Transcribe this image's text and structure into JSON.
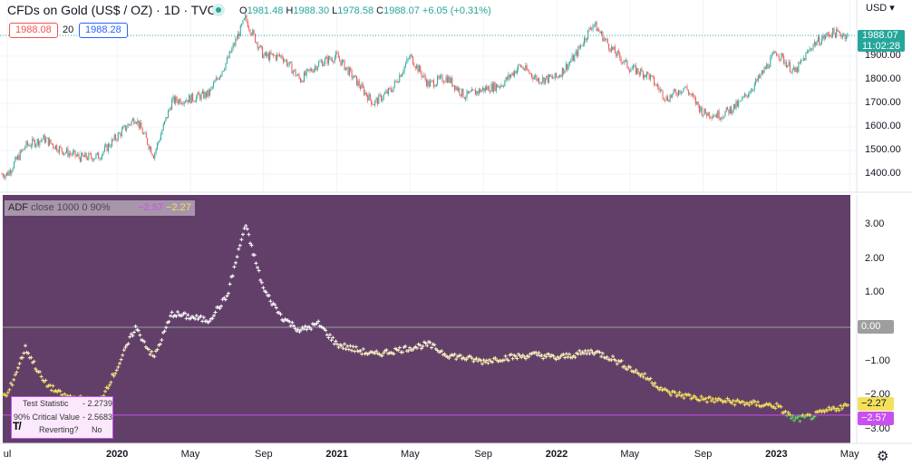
{
  "header": {
    "title": "CFDs on Gold (US$ / OZ) · 1D · TVC",
    "market_status_icon": "market-open-dot-icon",
    "ohlc": {
      "o_label": "O",
      "o": "1981.48",
      "h_label": "H",
      "h": "1988.30",
      "l_label": "L",
      "l": "1978.58",
      "c_label": "C",
      "c": "1988.07",
      "change": "+6.05 (+0.31%)"
    },
    "sell_price": "1988.08",
    "spread": "20",
    "buy_price": "1988.28"
  },
  "price_axis": {
    "currency": "USD ▾",
    "ticks": [
      "1900.00",
      "1800.00",
      "1700.00",
      "1600.00",
      "1500.00",
      "1400.00"
    ],
    "last_price": "1988.07",
    "countdown": "11:02:28"
  },
  "adf_legend": {
    "name": "ADF",
    "params": "close 1000 0 90%",
    "zero": "0.00",
    "critical": "−2.57",
    "statistic": "−2.27"
  },
  "adf_axis": {
    "ticks": [
      "3.00",
      "2.00",
      "1.00",
      "−1.00",
      "−2.00",
      "−3.00"
    ],
    "zero_label": "0.00",
    "stat_label": "−2.27",
    "crit_label": "−2.57"
  },
  "adf_table": {
    "rows": [
      {
        "label": "Test Statistic",
        "value": "- 2.2739"
      },
      {
        "label": "90% Critical Value",
        "value": "- 2.5683"
      },
      {
        "label": "Reverting?",
        "value": "No"
      }
    ],
    "logo": "TV"
  },
  "time_axis": {
    "ticks": [
      {
        "label": "ul",
        "m": 0.0,
        "bold": false
      },
      {
        "label": "2020",
        "m": 6,
        "bold": true
      },
      {
        "label": "May",
        "m": 10,
        "bold": false
      },
      {
        "label": "Sep",
        "m": 14,
        "bold": false
      },
      {
        "label": "2021",
        "m": 18,
        "bold": true
      },
      {
        "label": "May",
        "m": 22,
        "bold": false
      },
      {
        "label": "Sep",
        "m": 26,
        "bold": false
      },
      {
        "label": "2022",
        "m": 30,
        "bold": true
      },
      {
        "label": "May",
        "m": 34,
        "bold": false
      },
      {
        "label": "Sep",
        "m": 38,
        "bold": false
      },
      {
        "label": "2023",
        "m": 42,
        "bold": true
      },
      {
        "label": "May",
        "m": 46,
        "bold": false
      }
    ]
  },
  "colors": {
    "up": "#26a69a",
    "down": "#ef5350",
    "adf_bg": "#613f69",
    "critical": "#c850f0",
    "statistic": "#f5e05a",
    "zero_line": "#9e9e9e",
    "reverting": "#5cd65c"
  },
  "chart_data": [
    {
      "type": "candlestick",
      "title": "CFDs on Gold (US$ / OZ)",
      "interval": "1D",
      "ylim": [
        1340,
        2100
      ],
      "price_path": [
        [
          "2019-07",
          1400
        ],
        [
          "2019-08",
          1520
        ],
        [
          "2019-09",
          1550
        ],
        [
          "2019-10",
          1500
        ],
        [
          "2019-11",
          1470
        ],
        [
          "2019-12",
          1475
        ],
        [
          "2020-01",
          1560
        ],
        [
          "2020-02",
          1640
        ],
        [
          "2020-03",
          1480
        ],
        [
          "2020-04",
          1710
        ],
        [
          "2020-05",
          1720
        ],
        [
          "2020-06",
          1740
        ],
        [
          "2020-07",
          1880
        ],
        [
          "2020-08",
          2060
        ],
        [
          "2020-09",
          1900
        ],
        [
          "2020-10",
          1900
        ],
        [
          "2020-11",
          1800
        ],
        [
          "2020-12",
          1870
        ],
        [
          "2021-01",
          1900
        ],
        [
          "2021-02",
          1800
        ],
        [
          "2021-03",
          1700
        ],
        [
          "2021-04",
          1760
        ],
        [
          "2021-05",
          1900
        ],
        [
          "2021-06",
          1780
        ],
        [
          "2021-07",
          1810
        ],
        [
          "2021-08",
          1730
        ],
        [
          "2021-09",
          1760
        ],
        [
          "2021-10",
          1780
        ],
        [
          "2021-11",
          1860
        ],
        [
          "2021-12",
          1800
        ],
        [
          "2022-01",
          1810
        ],
        [
          "2022-02",
          1900
        ],
        [
          "2022-03",
          2040
        ],
        [
          "2022-04",
          1930
        ],
        [
          "2022-05",
          1850
        ],
        [
          "2022-06",
          1820
        ],
        [
          "2022-07",
          1720
        ],
        [
          "2022-08",
          1770
        ],
        [
          "2022-09",
          1660
        ],
        [
          "2022-10",
          1650
        ],
        [
          "2022-11",
          1700
        ],
        [
          "2022-12",
          1800
        ],
        [
          "2023-01",
          1920
        ],
        [
          "2023-02",
          1830
        ],
        [
          "2023-03",
          1950
        ],
        [
          "2023-04",
          2000
        ],
        [
          "2023-05",
          1988.07
        ]
      ]
    },
    {
      "type": "scatter",
      "title": "ADF close 1000 0 90%",
      "ylim": [
        -3.3,
        3.3
      ],
      "hlines": {
        "zero": 0,
        "critical": -2.57
      },
      "adf_path": [
        [
          "2019-07",
          -2.0
        ],
        [
          "2019-08",
          -0.6
        ],
        [
          "2019-09",
          -1.6
        ],
        [
          "2019-10",
          -2.0
        ],
        [
          "2019-12",
          -2.2
        ],
        [
          "2020-01",
          -1.2
        ],
        [
          "2020-02",
          0.0
        ],
        [
          "2020-03",
          -0.9
        ],
        [
          "2020-04",
          0.4
        ],
        [
          "2020-06",
          0.2
        ],
        [
          "2020-07",
          0.9
        ],
        [
          "2020-08",
          3.0
        ],
        [
          "2020-09",
          1.1
        ],
        [
          "2020-10",
          0.3
        ],
        [
          "2020-11",
          -0.1
        ],
        [
          "2020-12",
          0.1
        ],
        [
          "2021-01",
          -0.5
        ],
        [
          "2021-03",
          -0.8
        ],
        [
          "2021-04",
          -0.7
        ],
        [
          "2021-06",
          -0.5
        ],
        [
          "2021-07",
          -0.8
        ],
        [
          "2021-09",
          -1.0
        ],
        [
          "2021-10",
          -0.9
        ],
        [
          "2021-12",
          -0.8
        ],
        [
          "2022-01",
          -0.9
        ],
        [
          "2022-03",
          -0.7
        ],
        [
          "2022-04",
          -0.9
        ],
        [
          "2022-06",
          -1.5
        ],
        [
          "2022-07",
          -1.9
        ],
        [
          "2022-09",
          -2.1
        ],
        [
          "2022-11",
          -2.2
        ],
        [
          "2023-01",
          -2.3
        ],
        [
          "2023-02",
          -2.7
        ],
        [
          "2023-03",
          -2.6
        ],
        [
          "2023-04",
          -2.4
        ],
        [
          "2023-05",
          -2.27
        ]
      ]
    }
  ]
}
